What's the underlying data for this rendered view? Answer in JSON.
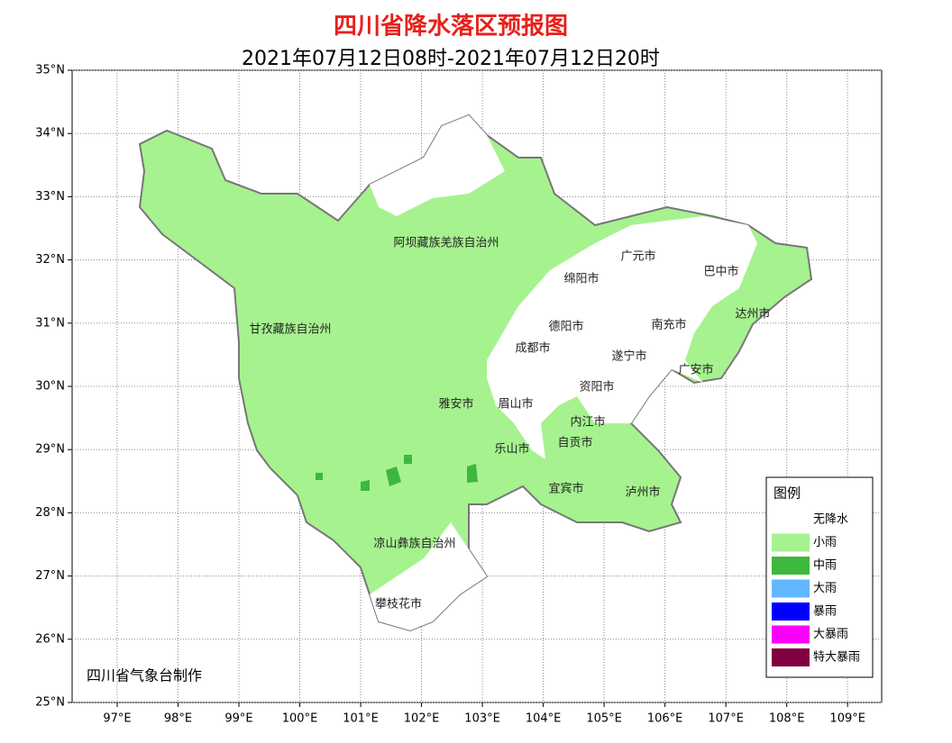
{
  "header": {
    "title": "四川省降水落区预报图",
    "subtitle": "2021年07月12日08时-2021年07月12日20时"
  },
  "map": {
    "xlim": [
      96.26,
      109.56
    ],
    "ylim": [
      25,
      35
    ],
    "xticks": [
      {
        "value": 97,
        "label": "97°E"
      },
      {
        "value": 98,
        "label": "98°E"
      },
      {
        "value": 99,
        "label": "99°E"
      },
      {
        "value": 100,
        "label": "100°E"
      },
      {
        "value": 101,
        "label": "101°E"
      },
      {
        "value": 102,
        "label": "102°E"
      },
      {
        "value": 103,
        "label": "103°E"
      },
      {
        "value": 104,
        "label": "104°E"
      },
      {
        "value": 105,
        "label": "105°E"
      },
      {
        "value": 106,
        "label": "106°E"
      },
      {
        "value": 107,
        "label": "107°E"
      },
      {
        "value": 108,
        "label": "108°E"
      },
      {
        "value": 109,
        "label": "109°E"
      }
    ],
    "yticks": [
      {
        "value": 25,
        "label": "25°N"
      },
      {
        "value": 26,
        "label": "26°N"
      },
      {
        "value": 27,
        "label": "27°N"
      },
      {
        "value": 28,
        "label": "28°N"
      },
      {
        "value": 29,
        "label": "29°N"
      },
      {
        "value": 30,
        "label": "30°N"
      },
      {
        "value": 31,
        "label": "31°N"
      },
      {
        "value": 32,
        "label": "32°N"
      },
      {
        "value": 33,
        "label": "33°N"
      },
      {
        "value": 34,
        "label": "34°N"
      },
      {
        "value": 35,
        "label": "35°N"
      }
    ],
    "places": [
      "阿坝藏族羌族自治州",
      "甘孜藏族自治州",
      "广元市",
      "巴中市",
      "绵阳市",
      "达州市",
      "德阳市",
      "南充市",
      "成都市",
      "遂宁市",
      "广安市",
      "资阳市",
      "雅安市",
      "眉山市",
      "内江市",
      "自贡市",
      "乐山市",
      "宜宾市",
      "泸州市",
      "凉山彝族自治州",
      "攀枝花市"
    ],
    "credit": "四川省气象台制作"
  },
  "legend": {
    "title": "图例",
    "items": [
      {
        "label": "无降水",
        "color": "#ffffff"
      },
      {
        "label": "小雨",
        "color": "#a6f28f"
      },
      {
        "label": "中雨",
        "color": "#3db83d"
      },
      {
        "label": "大雨",
        "color": "#61b8ff"
      },
      {
        "label": "暴雨",
        "color": "#0000fe"
      },
      {
        "label": "大暴雨",
        "color": "#fa00fa"
      },
      {
        "label": "特大暴雨",
        "color": "#800040"
      }
    ]
  }
}
